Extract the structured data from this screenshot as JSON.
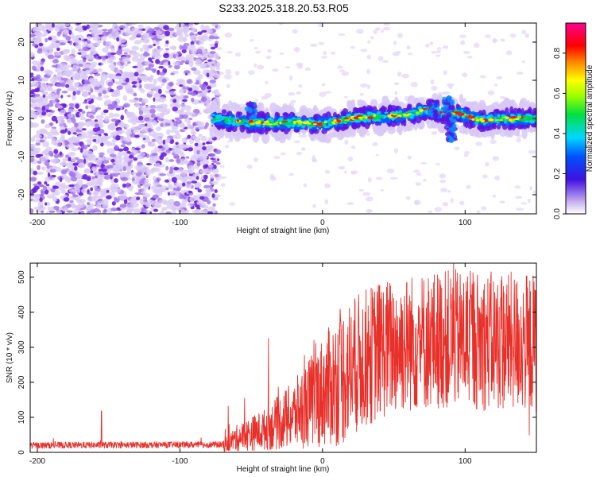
{
  "title": "S233.2025.318.20.53.R05",
  "chart_data": [
    {
      "type": "heatmap",
      "xlabel": "Height of straight line (km)",
      "ylabel": "Frequency (Hz)",
      "xlim": [
        -205,
        150
      ],
      "ylim": [
        -25,
        25
      ],
      "xticks": [
        -200,
        -100,
        0,
        100
      ],
      "yticks": [
        -20,
        -10,
        0,
        10,
        20
      ],
      "noise_region_x": [
        -205,
        -73
      ],
      "signal_region_x": [
        -77,
        150
      ],
      "colorbar": {
        "label": "Normalized spectral amplitude",
        "range": [
          0.0,
          0.95
        ],
        "ticks": [
          0.0,
          0.2,
          0.4,
          0.6,
          0.8
        ],
        "colors": [
          "#c8c8f0",
          "#3000e0",
          "#0090ff",
          "#00e0ff",
          "#00e000",
          "#ffff00",
          "#ff0000",
          "#ff0090"
        ]
      },
      "signal_centerline": {
        "x": [
          -77,
          -60,
          -40,
          -20,
          0,
          20,
          40,
          60,
          75,
          85,
          95,
          110,
          130,
          150
        ],
        "y": [
          0,
          -0.8,
          -1.2,
          -1.0,
          -1.5,
          0,
          0.5,
          1.0,
          2.5,
          1.0,
          1.5,
          -0.5,
          0,
          0
        ]
      }
    },
    {
      "type": "line",
      "xlabel": "Height of straight line (km)",
      "ylabel": "SNR (10 * v/v)",
      "xlim": [
        -205,
        150
      ],
      "ylim": [
        0,
        540
      ],
      "xticks": [
        -200,
        -100,
        0,
        100
      ],
      "yticks": [
        0,
        100,
        200,
        300,
        400,
        500
      ],
      "series": [
        {
          "name": "SNR",
          "color": "#e8302a",
          "envelope_x": [
            -205,
            -70,
            -60,
            -40,
            -20,
            0,
            20,
            40,
            60,
            80,
            100,
            120,
            150
          ],
          "envelope_mean": [
            20,
            22,
            50,
            80,
            130,
            210,
            290,
            340,
            360,
            370,
            370,
            365,
            360
          ],
          "spikes": [
            {
              "x": -155,
              "y": 118
            },
            {
              "x": -38,
              "y": 325
            },
            {
              "x": 92,
              "y": 540
            },
            {
              "x": 145,
              "y": 50
            }
          ]
        }
      ]
    }
  ]
}
